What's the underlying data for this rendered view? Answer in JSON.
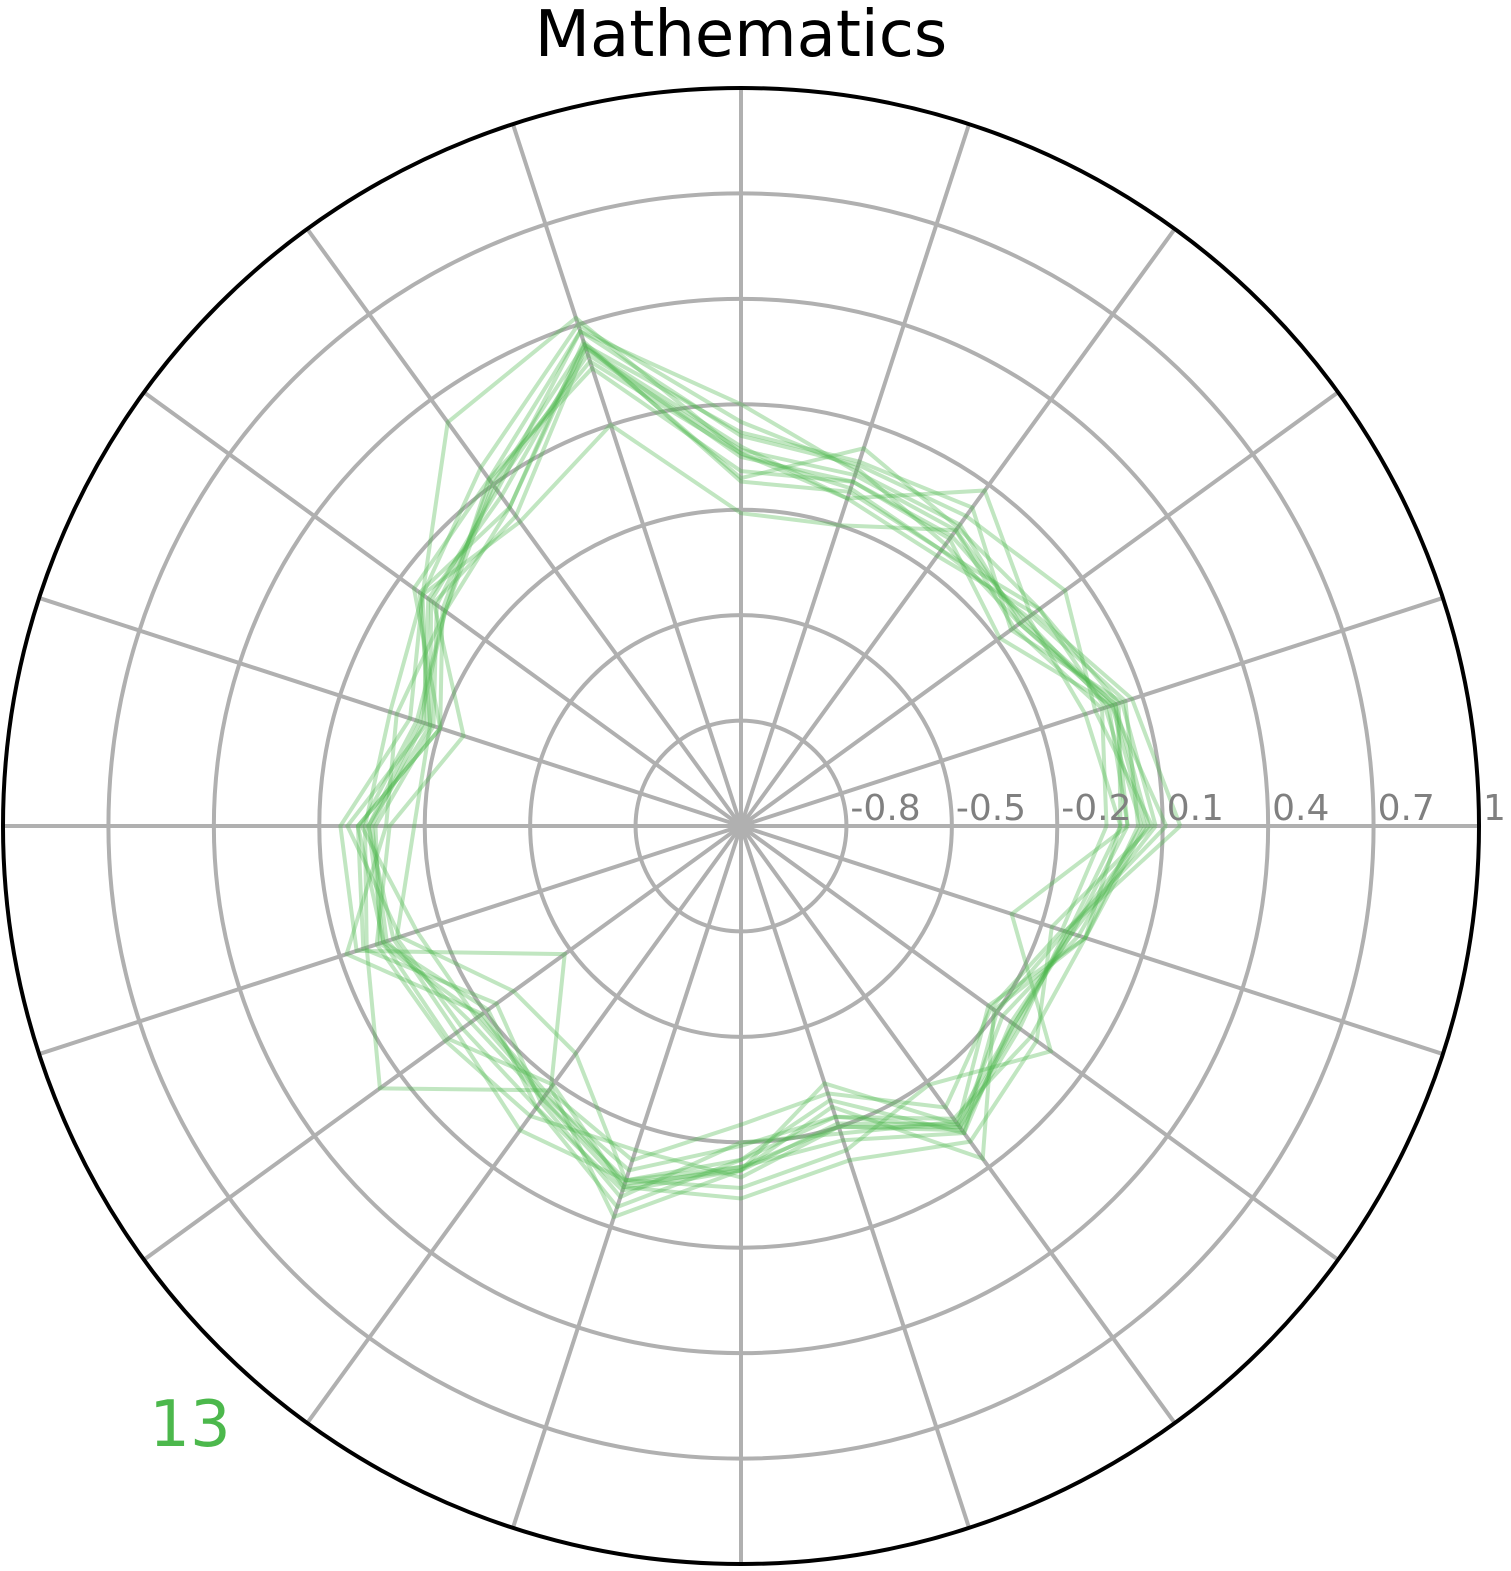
{
  "chart_data": {
    "type": "radar",
    "title": "Mathematics",
    "count_label": "13",
    "axis_count": 20,
    "r_min": -1.1,
    "r_max": 1.0,
    "r_ticks": [
      "-0.8",
      "-0.5",
      "-0.2",
      "0.1",
      "0.4",
      "0.7",
      "1"
    ],
    "r_tick_values": [
      -0.8,
      -0.5,
      -0.2,
      0.1,
      0.4,
      0.7,
      1.0
    ],
    "grid": true,
    "line_color": "#4cb84c",
    "series": [
      {
        "values": [
          0.03,
          0.05,
          -0.08,
          0.08,
          -0.12,
          -0.04,
          0.42,
          0.32,
          0.02,
          -0.11,
          0.04,
          0.05,
          -0.48,
          -0.18,
          0.07,
          -0.12,
          -0.33,
          -0.05,
          -0.23,
          -0.07
        ]
      },
      {
        "values": [
          0.0,
          0.02,
          -0.12,
          -0.11,
          -0.03,
          0.05,
          0.4,
          0.16,
          0.02,
          -0.16,
          0.02,
          -0.08,
          -0.3,
          -0.3,
          -0.04,
          -0.07,
          -0.13,
          -0.19,
          -0.01,
          -0.29
        ]
      },
      {
        "values": [
          -0.06,
          -0.02,
          -0.14,
          -0.06,
          -0.2,
          -0.21,
          0.1,
          -0.03,
          0.02,
          -0.05,
          -0.03,
          0.02,
          0.17,
          -0.17,
          -0.1,
          -0.25,
          -0.3,
          -0.11,
          -0.22,
          -0.14
        ]
      },
      {
        "values": [
          0.11,
          0.01,
          -0.19,
          -0.09,
          -0.07,
          -0.09,
          0.27,
          0.12,
          -0.06,
          -0.07,
          -0.09,
          0.08,
          -0.19,
          -0.14,
          -0.04,
          -0.15,
          -0.28,
          -0.02,
          -0.2,
          -0.13
        ]
      },
      {
        "values": [
          0.15,
          0.07,
          -0.07,
          -0.15,
          -0.12,
          -0.02,
          0.33,
          -0.01,
          -0.02,
          -0.27,
          -0.1,
          -0.01,
          -0.06,
          -0.08,
          -0.13,
          -0.1,
          -0.2,
          -0.04,
          -0.12,
          -0.13
        ]
      },
      {
        "values": [
          -0.02,
          -0.07,
          -0.09,
          -0.13,
          -0.1,
          -0.12,
          0.35,
          0.02,
          -0.06,
          -0.13,
          -0.02,
          -0.13,
          -0.17,
          -0.15,
          -0.07,
          -0.19,
          -0.23,
          -0.07,
          -0.08,
          -0.07
        ]
      },
      {
        "values": [
          0.07,
          -0.04,
          0.04,
          -0.01,
          -0.02,
          0.01,
          0.38,
          0.12,
          0.05,
          -0.2,
          -0.01,
          -0.03,
          -0.07,
          -0.19,
          -0.02,
          -0.04,
          -0.1,
          0.01,
          -0.06,
          -0.17
        ]
      },
      {
        "values": [
          0.05,
          0.01,
          -0.12,
          -0.04,
          -0.04,
          0.1,
          0.38,
          0.08,
          -0.01,
          -0.17,
          -0.17,
          -0.07,
          -0.12,
          -0.11,
          -0.01,
          -0.12,
          -0.26,
          0.07,
          -0.21,
          -0.07
        ]
      },
      {
        "values": [
          -0.02,
          0.03,
          -0.05,
          -0.13,
          -0.09,
          -0.04,
          0.29,
          0.11,
          -0.05,
          -0.2,
          -0.01,
          0.03,
          -0.24,
          -0.13,
          0.01,
          -0.2,
          -0.18,
          -0.06,
          -0.14,
          -0.12
        ]
      },
      {
        "values": [
          0.08,
          0.04,
          -0.15,
          0.02,
          -0.01,
          0.02,
          0.34,
          0.02,
          0.03,
          -0.17,
          -0.04,
          -0.06,
          -0.1,
          -0.03,
          -0.04,
          -0.13,
          -0.16,
          -0.02,
          -0.15,
          -0.11
        ]
      },
      {
        "values": [
          0.04,
          -0.01,
          -0.05,
          -0.05,
          0.03,
          -0.11,
          0.34,
          0.1,
          -0.06,
          -0.14,
          -0.04,
          -0.03,
          -0.21,
          -0.11,
          0.04,
          -0.15,
          -0.23,
          -0.04,
          -0.18,
          -0.09
        ]
      },
      {
        "values": [
          0.0,
          0.0,
          -0.1,
          -0.08,
          -0.07,
          -0.05,
          0.33,
          0.06,
          0.0,
          -0.15,
          -0.05,
          -0.04,
          -0.15,
          -0.14,
          -0.02,
          -0.13,
          -0.2,
          -0.03,
          -0.14,
          -0.11
        ]
      },
      {
        "values": [
          0.06,
          0.02,
          -0.11,
          -0.06,
          -0.05,
          -0.03,
          0.31,
          0.09,
          -0.03,
          -0.18,
          -0.06,
          -0.02,
          -0.18,
          -0.16,
          -0.03,
          -0.12,
          -0.21,
          -0.05,
          -0.13,
          -0.12
        ]
      }
    ]
  }
}
